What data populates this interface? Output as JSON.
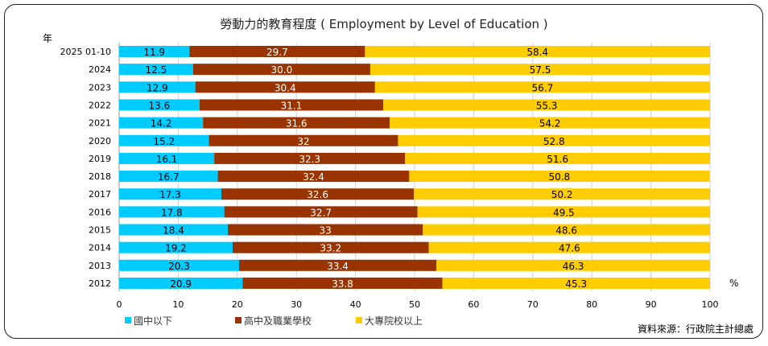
{
  "chart_data": {
    "type": "bar",
    "orientation": "horizontal",
    "stacked": true,
    "title": "勞動力的教育程度 ( Employment by Level of Education )",
    "ylabel": "年",
    "xlabel": "%",
    "xlim": [
      0,
      100
    ],
    "xticks": [
      0,
      10,
      20,
      30,
      40,
      50,
      60,
      70,
      80,
      90,
      100
    ],
    "grid": true,
    "legend_position": "bottom-left",
    "source": "資料來源：行政院主計總處",
    "categories": [
      "2025 01-10",
      "2024",
      "2023",
      "2022",
      "2021",
      "2020",
      "2019",
      "2018",
      "2017",
      "2016",
      "2015",
      "2014",
      "2013",
      "2012"
    ],
    "series": [
      {
        "name": "國中以下",
        "color": "#00CCFF",
        "label_color": "#000000",
        "values": [
          11.9,
          12.5,
          12.9,
          13.6,
          14.2,
          15.2,
          16.1,
          16.7,
          17.3,
          17.8,
          18.4,
          19.2,
          20.3,
          20.9
        ],
        "labels": [
          "11.9",
          "12.5",
          "12.9",
          "13.6",
          "14.2",
          "15.2",
          "16.1",
          "16.7",
          "17.3",
          "17.8",
          "18.4",
          "19.2",
          "20.3",
          "20.9"
        ]
      },
      {
        "name": "高中及職業學校",
        "color": "#993300",
        "label_color": "#FFFFFF",
        "values": [
          29.7,
          30.0,
          30.4,
          31.1,
          31.6,
          32,
          32.3,
          32.4,
          32.6,
          32.7,
          33,
          33.2,
          33.4,
          33.8
        ],
        "labels": [
          "29.7",
          "30.0",
          "30.4",
          "31.1",
          "31.6",
          "32",
          "32.3",
          "32.4",
          "32.6",
          "32.7",
          "33",
          "33.2",
          "33.4",
          "33.8"
        ]
      },
      {
        "name": "大專院校以上",
        "color": "#FFCC00",
        "label_color": "#000000",
        "values": [
          58.4,
          57.5,
          56.7,
          55.3,
          54.2,
          52.8,
          51.6,
          50.8,
          50.2,
          49.5,
          48.6,
          47.6,
          46.3,
          45.3
        ],
        "labels": [
          "58.4",
          "57.5",
          "56.7",
          "55.3",
          "54.2",
          "52.8",
          "51.6",
          "50.8",
          "50.2",
          "49.5",
          "48.6",
          "47.6",
          "46.3",
          "45.3"
        ]
      }
    ]
  }
}
